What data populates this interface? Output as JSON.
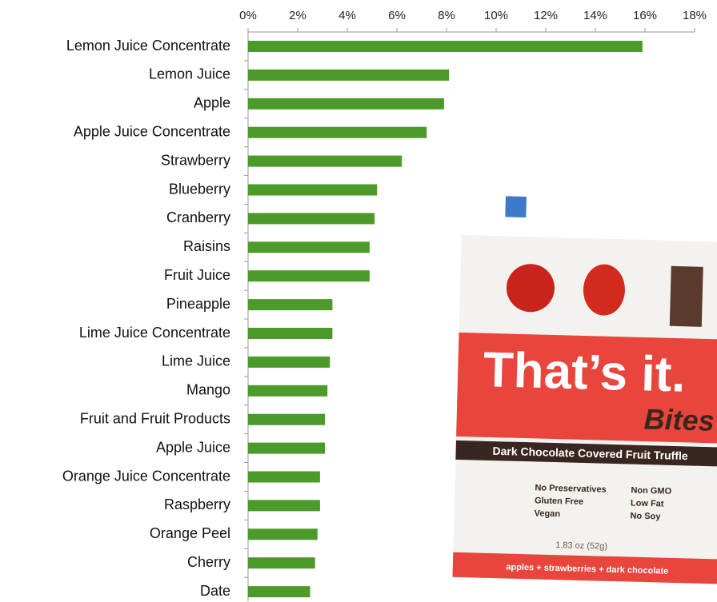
{
  "chart_data": {
    "type": "bar",
    "orientation": "horizontal",
    "categories": [
      "Lemon Juice Concentrate",
      "Lemon Juice",
      "Apple",
      "Apple Juice Concentrate",
      "Strawberry",
      "Blueberry",
      "Cranberry",
      "Raisins",
      "Fruit Juice",
      "Pineapple",
      "Lime Juice Concentrate",
      "Lime Juice",
      "Mango",
      "Fruit and Fruit Products",
      "Apple Juice",
      "Orange Juice Concentrate",
      "Raspberry",
      "Orange Peel",
      "Cherry",
      "Date"
    ],
    "values": [
      15.9,
      8.1,
      7.9,
      7.2,
      6.2,
      5.2,
      5.1,
      4.9,
      4.9,
      3.4,
      3.4,
      3.3,
      3.2,
      3.1,
      3.1,
      2.9,
      2.9,
      2.8,
      2.7,
      2.5
    ],
    "color": "#4c9a2a",
    "xlim": [
      0,
      18
    ],
    "xticks": [
      {
        "value": 0,
        "label": "0%"
      },
      {
        "value": 2,
        "label": "2%"
      },
      {
        "value": 4,
        "label": "4%"
      },
      {
        "value": 6,
        "label": "6%"
      },
      {
        "value": 8,
        "label": "8%"
      },
      {
        "value": 10,
        "label": "10%"
      },
      {
        "value": 12,
        "label": "12%"
      },
      {
        "value": 14,
        "label": "14%"
      },
      {
        "value": 16,
        "label": "16%"
      },
      {
        "value": 18,
        "label": "18%"
      }
    ],
    "grid": false,
    "annotations": [
      "That’s it.",
      "Bites",
      "Dark Chocolate Covered Fruit Truffle",
      "No Preservatives",
      "Gluten Free",
      "Vegan",
      "Non GMO",
      "Low Fat",
      "No Soy",
      "1.83 oz (52g)",
      "apples + strawberries + dark chocolate"
    ]
  }
}
